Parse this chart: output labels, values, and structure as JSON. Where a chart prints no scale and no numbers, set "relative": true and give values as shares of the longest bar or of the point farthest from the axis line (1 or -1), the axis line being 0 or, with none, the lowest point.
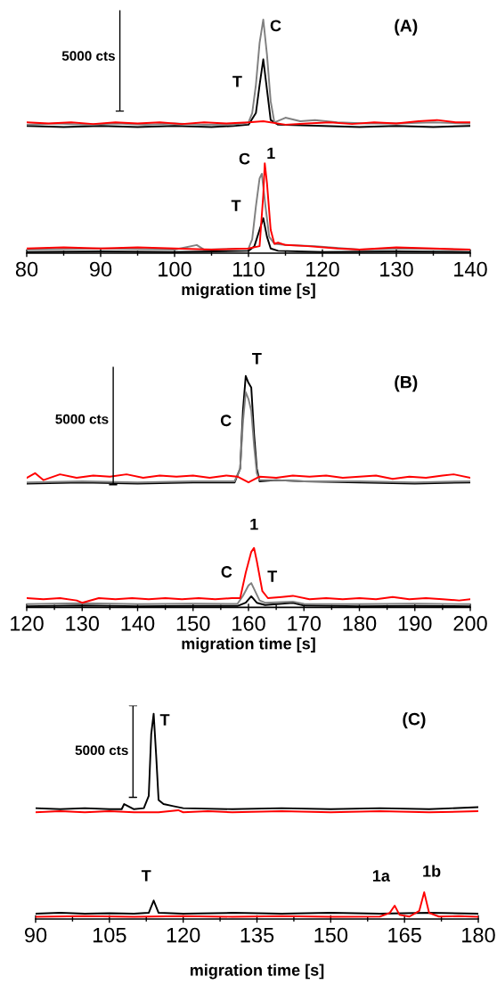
{
  "chart_data": [
    {
      "type": "line",
      "title": "(A)",
      "xlabel": "migration time [s]",
      "relative": true,
      "xlim": [
        80,
        140
      ],
      "xticks": [
        80,
        90,
        100,
        110,
        120,
        130,
        140
      ],
      "line_style": "solid",
      "annotations": [
        "5000 cts",
        {
          "text": "C",
          "x": 112,
          "y": 1.0
        },
        {
          "text": "T",
          "x": 112,
          "y": 0.83
        },
        {
          "text": "C",
          "x": 111.8,
          "y": 0.34
        },
        {
          "text": "1",
          "x": 112.2,
          "y": 0.385
        },
        {
          "text": "T",
          "x": 112,
          "y": 0.15
        }
      ],
      "series": [
        {
          "color": "#000000",
          "x": [
            80,
            85,
            90,
            95,
            100,
            105,
            108,
            110,
            111,
            111.5,
            112,
            112.5,
            113,
            114,
            120,
            125,
            130,
            135,
            140
          ],
          "values": [
            0.545,
            0.54,
            0.545,
            0.54,
            0.545,
            0.54,
            0.545,
            0.55,
            0.6,
            0.72,
            0.83,
            0.7,
            0.57,
            0.55,
            0.545,
            0.54,
            0.545,
            0.54,
            0.545
          ]
        },
        {
          "color": "#808080",
          "x": [
            80,
            84,
            88,
            92,
            96,
            100,
            104,
            108,
            110,
            110.5,
            111,
            111.5,
            112,
            112.5,
            113,
            113.5,
            115,
            117,
            119,
            122,
            126,
            130,
            135,
            140
          ],
          "values": [
            0.55,
            0.555,
            0.55,
            0.555,
            0.55,
            0.555,
            0.55,
            0.55,
            0.56,
            0.6,
            0.72,
            0.9,
            1.0,
            0.85,
            0.65,
            0.56,
            0.58,
            0.565,
            0.57,
            0.56,
            0.555,
            0.555,
            0.56,
            0.555
          ]
        },
        {
          "color": "#ff0000",
          "x": [
            80,
            83,
            86,
            89,
            92,
            95,
            98,
            101,
            104,
            107,
            110,
            112,
            115,
            118,
            121,
            124,
            127,
            130,
            133,
            135.5,
            138,
            140
          ],
          "values": [
            0.56,
            0.555,
            0.56,
            0.553,
            0.56,
            0.555,
            0.56,
            0.553,
            0.56,
            0.555,
            0.56,
            0.565,
            0.55,
            0.555,
            0.56,
            0.553,
            0.56,
            0.555,
            0.565,
            0.57,
            0.56,
            0.56
          ]
        },
        {
          "color": "#000000",
          "x": [
            80,
            90,
            100,
            110,
            110.8,
            111.5,
            112,
            112.5,
            113,
            114,
            120,
            130,
            140
          ],
          "values": [
            0.005,
            0.008,
            0.005,
            0.01,
            0.03,
            0.1,
            0.15,
            0.07,
            0.02,
            0.01,
            0.005,
            0.008,
            0.005
          ]
        },
        {
          "color": "#808080",
          "x": [
            80,
            90,
            100,
            103,
            104,
            110,
            110.5,
            111,
            111.5,
            111.8,
            112.3,
            112.8,
            113.5,
            115,
            119,
            125,
            132,
            140
          ],
          "values": [
            0.015,
            0.02,
            0.015,
            0.035,
            0.015,
            0.02,
            0.06,
            0.2,
            0.32,
            0.34,
            0.2,
            0.07,
            0.04,
            0.035,
            0.03,
            0.015,
            0.02,
            0.015
          ]
        },
        {
          "color": "#ff0000",
          "x": [
            80,
            85,
            90,
            95,
            100,
            105,
            110,
            111.5,
            112,
            112.2,
            112.5,
            113,
            113.5,
            114,
            115,
            118,
            122,
            125,
            130,
            135,
            140
          ],
          "values": [
            0.02,
            0.025,
            0.02,
            0.025,
            0.02,
            0.015,
            0.02,
            0.03,
            0.25,
            0.385,
            0.3,
            0.1,
            0.04,
            0.045,
            0.035,
            0.03,
            0.02,
            0.015,
            0.025,
            0.02,
            0.015
          ]
        }
      ]
    },
    {
      "type": "line",
      "title": "(B)",
      "xlabel": "migration time [s]",
      "relative": true,
      "xlim": [
        120,
        200
      ],
      "xticks": [
        120,
        130,
        140,
        150,
        160,
        170,
        180,
        190,
        200
      ],
      "line_style": "solid",
      "annotations": [
        "5000 cts",
        {
          "text": "T",
          "x": 159.5,
          "y": 1.0
        },
        {
          "text": "C",
          "x": 159.5,
          "y": 0.93
        },
        {
          "text": "1",
          "x": 161,
          "y": 0.257
        },
        {
          "text": "C",
          "x": 160.5,
          "y": 0.105
        },
        {
          "text": "T",
          "x": 160.5,
          "y": 0.048
        }
      ],
      "series": [
        {
          "color": "#000000",
          "x": [
            120,
            130,
            140,
            150,
            157.5,
            158.5,
            159,
            159.5,
            160,
            160.5,
            161,
            161.5,
            162,
            165,
            170,
            180,
            190,
            200
          ],
          "values": [
            0.535,
            0.54,
            0.535,
            0.54,
            0.54,
            0.6,
            0.85,
            1.0,
            0.97,
            0.95,
            0.75,
            0.6,
            0.545,
            0.55,
            0.545,
            0.54,
            0.535,
            0.54
          ]
        },
        {
          "color": "#808080",
          "x": [
            120,
            130,
            140,
            150,
            157.5,
            158.5,
            159,
            159.5,
            160,
            160.5,
            161,
            161.5,
            162,
            165,
            170,
            180,
            190,
            200
          ],
          "values": [
            0.54,
            0.545,
            0.54,
            0.545,
            0.545,
            0.6,
            0.8,
            0.93,
            0.9,
            0.85,
            0.7,
            0.58,
            0.55,
            0.55,
            0.545,
            0.545,
            0.54,
            0.545
          ]
        },
        {
          "color": "#ff0000",
          "x": [
            120,
            121.5,
            123,
            126,
            129,
            132,
            135,
            138,
            141,
            144,
            147,
            150,
            153,
            156,
            158,
            160,
            162,
            165,
            168,
            171,
            174,
            177,
            180,
            183,
            186,
            189,
            192,
            195,
            197,
            200
          ],
          "values": [
            0.56,
            0.58,
            0.55,
            0.575,
            0.56,
            0.57,
            0.565,
            0.575,
            0.56,
            0.57,
            0.565,
            0.57,
            0.56,
            0.57,
            0.565,
            0.54,
            0.565,
            0.56,
            0.57,
            0.565,
            0.57,
            0.56,
            0.565,
            0.57,
            0.555,
            0.565,
            0.56,
            0.57,
            0.575,
            0.56
          ]
        },
        {
          "color": "#000000",
          "x": [
            120,
            130,
            140,
            150,
            158,
            159.5,
            160.5,
            161.5,
            163,
            168,
            170,
            180,
            190,
            200
          ],
          "values": [
            0.005,
            0.008,
            0.005,
            0.006,
            0.006,
            0.02,
            0.048,
            0.02,
            0.01,
            0.02,
            0.008,
            0.005,
            0.006,
            0.005
          ]
        },
        {
          "color": "#808080",
          "x": [
            120,
            130,
            140,
            150,
            158,
            159,
            160,
            160.5,
            161,
            162,
            163,
            168,
            170,
            180,
            190,
            200
          ],
          "values": [
            0.014,
            0.018,
            0.014,
            0.016,
            0.015,
            0.05,
            0.095,
            0.105,
            0.08,
            0.03,
            0.02,
            0.025,
            0.015,
            0.014,
            0.016,
            0.014
          ]
        },
        {
          "color": "#ff0000",
          "x": [
            120,
            123,
            126,
            129,
            130,
            133,
            136,
            139,
            142,
            145,
            148,
            151,
            154,
            157,
            158.5,
            159.5,
            160.5,
            161,
            161.5,
            162.5,
            163.5,
            166,
            168,
            171,
            174,
            177,
            180,
            183,
            186,
            189,
            192,
            195,
            198,
            200
          ],
          "values": [
            0.04,
            0.035,
            0.04,
            0.03,
            0.02,
            0.04,
            0.035,
            0.04,
            0.035,
            0.04,
            0.035,
            0.04,
            0.035,
            0.04,
            0.04,
            0.15,
            0.24,
            0.257,
            0.2,
            0.07,
            0.04,
            0.045,
            0.05,
            0.035,
            0.04,
            0.035,
            0.04,
            0.035,
            0.045,
            0.035,
            0.04,
            0.035,
            0.03,
            0.035
          ]
        }
      ]
    },
    {
      "type": "line",
      "title": "(C)",
      "xlabel": "migration time [s]",
      "relative": true,
      "xlim": [
        90,
        180
      ],
      "xticks": [
        90,
        105,
        120,
        135,
        150,
        165,
        180
      ],
      "line_style": "solid",
      "annotations": [
        "5000 cts",
        {
          "text": "T",
          "x": 114,
          "y": 1.0
        },
        {
          "text": "T",
          "x": 114,
          "y": 0.09
        },
        {
          "text": "1a",
          "x": 163,
          "y": 0.065
        },
        {
          "text": "1b",
          "x": 169,
          "y": 0.13
        }
      ],
      "series": [
        {
          "color": "#000000",
          "x": [
            90,
            95,
            100,
            105,
            107.5,
            108,
            110,
            112,
            113,
            113.5,
            114,
            114.5,
            115,
            116,
            118,
            120,
            130,
            140,
            150,
            160,
            170,
            180
          ],
          "values": [
            0.54,
            0.535,
            0.54,
            0.535,
            0.535,
            0.56,
            0.535,
            0.54,
            0.6,
            0.9,
            1.0,
            0.8,
            0.58,
            0.56,
            0.55,
            0.54,
            0.535,
            0.54,
            0.535,
            0.54,
            0.535,
            0.545
          ]
        },
        {
          "color": "#ff0000",
          "x": [
            90,
            95,
            100,
            105,
            110,
            115,
            119,
            120,
            125,
            130,
            140,
            150,
            160,
            170,
            180
          ],
          "values": [
            0.52,
            0.525,
            0.52,
            0.525,
            0.52,
            0.52,
            0.53,
            0.52,
            0.525,
            0.52,
            0.525,
            0.52,
            0.525,
            0.52,
            0.525
          ]
        },
        {
          "color": "#000000",
          "x": [
            90,
            95,
            100,
            105,
            110,
            113,
            114,
            115,
            120,
            130,
            140,
            150,
            160,
            170,
            180
          ],
          "values": [
            0.026,
            0.03,
            0.026,
            0.028,
            0.026,
            0.03,
            0.09,
            0.03,
            0.026,
            0.03,
            0.026,
            0.03,
            0.026,
            0.03,
            0.026
          ]
        },
        {
          "color": "#ff0000",
          "x": [
            90,
            100,
            110,
            120,
            130,
            140,
            150,
            160,
            162,
            163,
            164,
            166,
            168,
            169,
            170,
            172,
            176,
            180
          ],
          "values": [
            0.011,
            0.014,
            0.011,
            0.014,
            0.011,
            0.014,
            0.011,
            0.012,
            0.03,
            0.065,
            0.02,
            0.012,
            0.04,
            0.13,
            0.03,
            0.012,
            0.014,
            0.011
          ]
        }
      ]
    }
  ]
}
